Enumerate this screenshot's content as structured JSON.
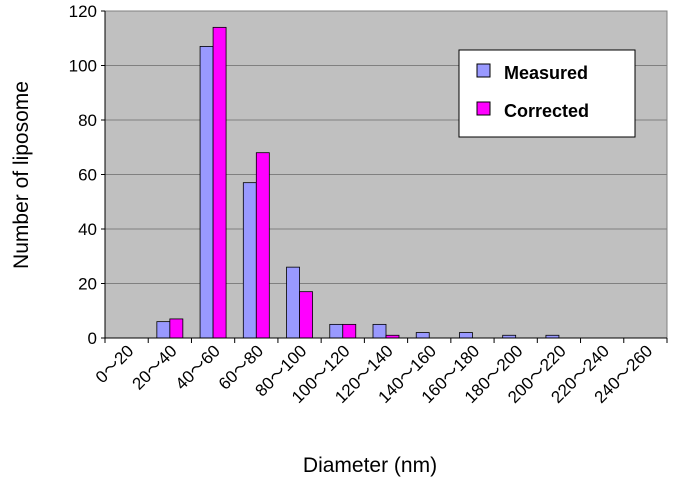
{
  "chart_data": {
    "type": "bar",
    "title": "",
    "xlabel": "Diameter (nm)",
    "ylabel": "Number of liposome",
    "ylim": [
      0,
      120
    ],
    "yticks": [
      0,
      20,
      40,
      60,
      80,
      100,
      120
    ],
    "grid": true,
    "legend_position": "top-right",
    "categories": [
      "0〜20",
      "20〜40",
      "40〜60",
      "60〜80",
      "80〜100",
      "100〜120",
      "120〜140",
      "140〜160",
      "160〜180",
      "180〜200",
      "200〜220",
      "220〜240",
      "240〜260"
    ],
    "series": [
      {
        "name": "Measured",
        "color": "#9999ff",
        "values": [
          0,
          6,
          107,
          57,
          26,
          5,
          5,
          2,
          2,
          1,
          1,
          0,
          0
        ]
      },
      {
        "name": "Corrected",
        "color": "#ff00ff",
        "values": [
          0,
          7,
          114,
          68,
          17,
          5,
          1,
          0,
          0,
          0,
          0,
          0,
          0
        ]
      }
    ],
    "plot_background": "#c0c0c0"
  }
}
